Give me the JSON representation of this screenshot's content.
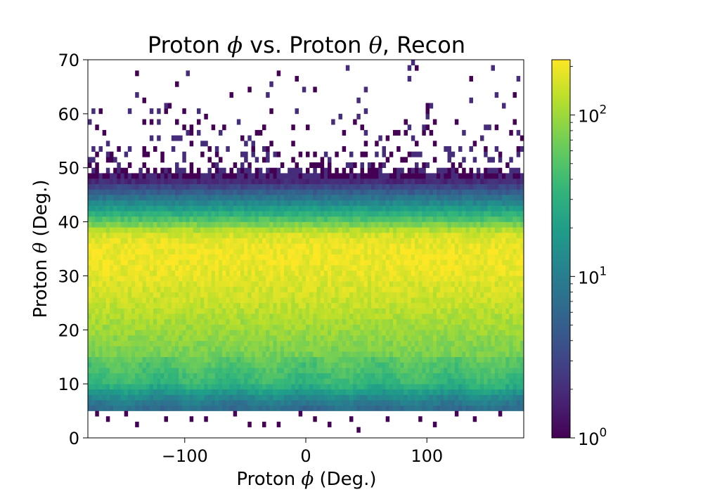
{
  "chart_data": {
    "type": "heatmap",
    "title": {
      "part1": "Proton ",
      "phi_symbol": "ϕ",
      "part2": " vs. Proton ",
      "theta_symbol": "θ",
      "part3": ", Recon"
    },
    "xlabel": {
      "part1": "Proton ",
      "symbol": "ϕ",
      "part2": " (Deg.)"
    },
    "ylabel": {
      "part1": "Proton ",
      "symbol": "θ",
      "part2": " (Deg.)"
    },
    "xlim": [
      -180,
      180
    ],
    "ylim": [
      0,
      70
    ],
    "x_ticks": [
      {
        "value": -100,
        "label": "−100"
      },
      {
        "value": 0,
        "label": "0"
      },
      {
        "value": 100,
        "label": "100"
      }
    ],
    "y_ticks": [
      {
        "value": 0,
        "label": "0"
      },
      {
        "value": 10,
        "label": "10"
      },
      {
        "value": 20,
        "label": "20"
      },
      {
        "value": 30,
        "label": "30"
      },
      {
        "value": 40,
        "label": "40"
      },
      {
        "value": 50,
        "label": "50"
      },
      {
        "value": 60,
        "label": "60"
      },
      {
        "value": 70,
        "label": "70"
      }
    ],
    "colorbar": {
      "scale": "log",
      "colormap": "viridis",
      "range": [
        1,
        220
      ],
      "ticks": [
        {
          "value": 1,
          "base": "10",
          "exp": "0"
        },
        {
          "value": 10,
          "base": "10",
          "exp": "1"
        },
        {
          "value": 100,
          "base": "10",
          "exp": "2"
        }
      ]
    },
    "bins": {
      "x_count": 120,
      "y_count": 70
    },
    "theta_profile": [
      {
        "theta": 5.5,
        "counts": 8
      },
      {
        "theta": 7,
        "counts": 12
      },
      {
        "theta": 10,
        "counts": 40
      },
      {
        "theta": 15,
        "counts": 70
      },
      {
        "theta": 20,
        "counts": 100
      },
      {
        "theta": 25,
        "counts": 140
      },
      {
        "theta": 30,
        "counts": 180
      },
      {
        "theta": 33,
        "counts": 200
      },
      {
        "theta": 36,
        "counts": 190
      },
      {
        "theta": 38,
        "counts": 150
      },
      {
        "theta": 40,
        "counts": 60
      },
      {
        "theta": 42,
        "counts": 25
      },
      {
        "theta": 44,
        "counts": 10
      },
      {
        "theta": 46,
        "counts": 4
      },
      {
        "theta": 48,
        "counts": 1.5
      },
      {
        "theta": 50,
        "counts": 0.35
      },
      {
        "theta": 55,
        "counts": 0.12
      },
      {
        "theta": 60,
        "counts": 0.07
      },
      {
        "theta": 65,
        "counts": 0.035
      },
      {
        "theta": 70,
        "counts": 0.02
      }
    ],
    "theta_min_populated": 5.5,
    "sparse_low_theta": [
      {
        "phi": -172,
        "theta": 4
      },
      {
        "phi": -165,
        "theta": 3.2
      },
      {
        "phi": -150,
        "theta": 4.3
      },
      {
        "phi": -140,
        "theta": 2.5
      },
      {
        "phi": -115,
        "theta": 3.9
      },
      {
        "phi": -95,
        "theta": 3.7
      },
      {
        "phi": -83,
        "theta": 3.2
      },
      {
        "phi": -60,
        "theta": 4.0
      },
      {
        "phi": -47,
        "theta": 2.0
      },
      {
        "phi": -35,
        "theta": 2.4
      },
      {
        "phi": -22,
        "theta": 2.5
      },
      {
        "phi": -5,
        "theta": 4.6
      },
      {
        "phi": 8,
        "theta": 3.3
      },
      {
        "phi": 18,
        "theta": 2.8
      },
      {
        "phi": 38,
        "theta": 3.7
      },
      {
        "phi": 42,
        "theta": 1.8
      },
      {
        "phi": 68,
        "theta": 3.9
      },
      {
        "phi": 95,
        "theta": 3.3
      },
      {
        "phi": 105,
        "theta": 2.4
      },
      {
        "phi": 125,
        "theta": 4.0
      },
      {
        "phi": 140,
        "theta": 3.1
      },
      {
        "phi": 160,
        "theta": 4.4
      }
    ]
  }
}
